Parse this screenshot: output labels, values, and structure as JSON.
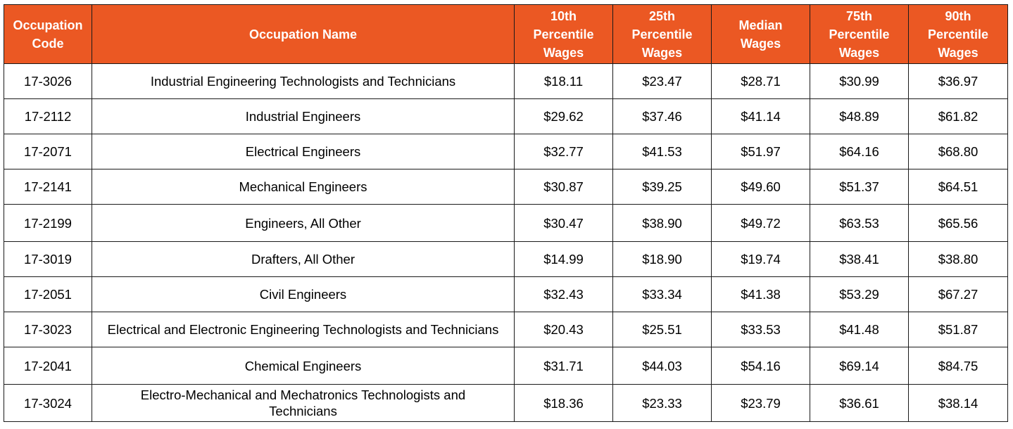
{
  "header_color": "#eb5823",
  "columns": [
    "Occupation Code",
    "Occupation Name",
    "10th Percentile Wages",
    "25th Percentile Wages",
    "Median Wages",
    "75th Percentile Wages",
    "90th Percentile Wages"
  ],
  "rows": [
    [
      "17-3026",
      "Industrial Engineering Technologists and Technicians",
      "$18.11",
      "$23.47",
      "$28.71",
      "$30.99",
      "$36.97"
    ],
    [
      "17-2112",
      "Industrial Engineers",
      "$29.62",
      "$37.46",
      "$41.14",
      "$48.89",
      "$61.82"
    ],
    [
      "17-2071",
      "Electrical Engineers",
      "$32.77",
      "$41.53",
      "$51.97",
      "$64.16",
      "$68.80"
    ],
    [
      "17-2141",
      "Mechanical Engineers",
      "$30.87",
      "$39.25",
      "$49.60",
      "$51.37",
      "$64.51"
    ],
    [
      "17-2199",
      "Engineers, All Other",
      "$30.47",
      "$38.90",
      "$49.72",
      "$63.53",
      "$65.56"
    ],
    [
      "17-3019",
      "Drafters, All Other",
      "$14.99",
      "$18.90",
      "$19.74",
      "$38.41",
      "$38.80"
    ],
    [
      "17-2051",
      "Civil Engineers",
      "$32.43",
      "$33.34",
      "$41.38",
      "$53.29",
      "$67.27"
    ],
    [
      "17-3023",
      "Electrical and Electronic Engineering Technologists and Technicians",
      "$20.43",
      "$25.51",
      "$33.53",
      "$41.48",
      "$51.87"
    ],
    [
      "17-2041",
      "Chemical Engineers",
      "$31.71",
      "$44.03",
      "$54.16",
      "$69.14",
      "$84.75"
    ],
    [
      "17-3024",
      "Electro-Mechanical and Mechatronics Technologists and Technicians",
      "$18.36",
      "$23.33",
      "$23.79",
      "$36.61",
      "$38.14"
    ]
  ]
}
